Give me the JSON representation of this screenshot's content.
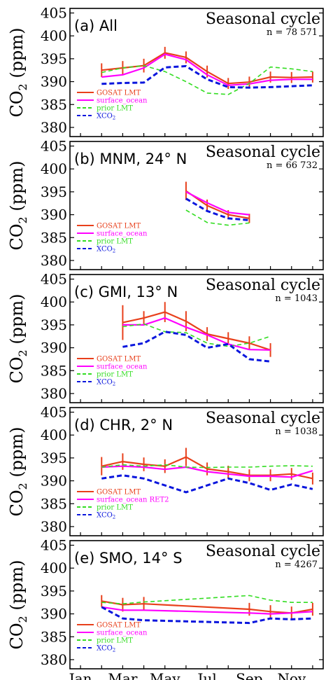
{
  "figure": {
    "y_axis_label": "CO",
    "y_axis_label_sub": "2",
    "y_axis_label_unit": " (ppm)",
    "x_tick_labels": [
      "Jan",
      "Mar",
      "May",
      "Jul",
      "Sep",
      "Nov"
    ]
  },
  "chart_data": [
    {
      "type": "line",
      "title": "(a) All",
      "subtitle": "Seasonal cycle",
      "annotation": "n = 78 571",
      "xlim": [
        0.5,
        12.5
      ],
      "ylim": [
        378,
        406
      ],
      "yticks": [
        380,
        385,
        390,
        395,
        400,
        405
      ],
      "legend_position": "left",
      "series": [
        {
          "name": "GOSAT LMT",
          "color": "#e8401c",
          "style": "solid",
          "x": [
            2,
            3,
            4,
            5,
            6,
            7,
            8,
            9,
            10,
            11,
            12
          ],
          "y": [
            392.5,
            393.0,
            393.5,
            396.3,
            395.3,
            392.2,
            389.6,
            389.9,
            391.0,
            390.9,
            391.0
          ],
          "err": [
            1.5,
            1.5,
            1.5,
            1.3,
            1.3,
            1.3,
            1.2,
            1.2,
            1.2,
            1.2,
            1.2
          ]
        },
        {
          "name": "surface_ocean",
          "color": "#ff00ff",
          "style": "solid",
          "x": [
            2,
            3,
            4,
            5,
            6,
            7,
            8,
            9,
            10,
            11,
            12
          ],
          "y": [
            391.0,
            391.5,
            393.0,
            396.0,
            394.8,
            391.5,
            389.2,
            389.5,
            390.3,
            390.5,
            390.5
          ]
        },
        {
          "name": "prior LMT",
          "color": "#33dd22",
          "style": "dashed",
          "x": [
            2,
            3,
            4,
            5,
            6,
            7,
            8,
            9,
            10,
            11,
            12
          ],
          "y": [
            392.0,
            393.0,
            393.5,
            392.2,
            390.0,
            387.5,
            387.2,
            389.6,
            393.2,
            392.8,
            392.2
          ]
        },
        {
          "name": "XCO",
          "name_sub": "2",
          "color": "#0a16dd",
          "style": "dashed",
          "x": [
            2,
            3,
            4,
            5,
            6,
            7,
            8,
            9,
            10,
            11,
            12
          ],
          "y": [
            389.5,
            389.7,
            389.8,
            393.1,
            393.4,
            390.5,
            388.8,
            388.7,
            388.8,
            389.0,
            389.2
          ]
        }
      ]
    },
    {
      "type": "line",
      "title": "(b) MNM, 24° N",
      "subtitle": "Seasonal cycle",
      "annotation": "n = 66 732",
      "xlim": [
        0.5,
        12.5
      ],
      "ylim": [
        378,
        406
      ],
      "yticks": [
        380,
        385,
        390,
        395,
        400,
        405
      ],
      "legend_position": "left",
      "series": [
        {
          "name": "GOSAT LMT",
          "color": "#e8401c",
          "style": "solid",
          "x": [
            6,
            7,
            8,
            9
          ],
          "y": [
            395.2,
            392.0,
            390.0,
            389.2
          ],
          "err": [
            2.0,
            1.3,
            1.0,
            1.0
          ]
        },
        {
          "name": "surface_ocean",
          "color": "#ff00ff",
          "style": "solid",
          "x": [
            6,
            7,
            8,
            9
          ],
          "y": [
            395.0,
            392.6,
            390.5,
            390.0
          ]
        },
        {
          "name": "prior LMT",
          "color": "#33dd22",
          "style": "dashed",
          "x": [
            6,
            7,
            8,
            9
          ],
          "y": [
            391.0,
            388.3,
            387.7,
            388.2
          ]
        },
        {
          "name": "XCO",
          "name_sub": "2",
          "color": "#0a16dd",
          "style": "dashed",
          "x": [
            6,
            7,
            8,
            9
          ],
          "y": [
            393.5,
            390.8,
            389.2,
            388.8
          ]
        }
      ]
    },
    {
      "type": "line",
      "title": "(c) GMI, 13° N",
      "subtitle": "Seasonal cycle",
      "annotation": "n = 1043",
      "xlim": [
        0.5,
        12.5
      ],
      "ylim": [
        378,
        406
      ],
      "yticks": [
        380,
        385,
        390,
        395,
        400,
        405
      ],
      "legend_position": "left",
      "series": [
        {
          "name": "GOSAT LMT",
          "color": "#e8401c",
          "style": "solid",
          "x": [
            3,
            4,
            5,
            6,
            7,
            8,
            9,
            10
          ],
          "y": [
            395.5,
            396.5,
            397.8,
            395.8,
            393.0,
            392.0,
            391.0,
            389.5
          ],
          "err": [
            3.8,
            1.5,
            2.2,
            2.2,
            1.5,
            1.4,
            1.5,
            1.5
          ]
        },
        {
          "name": "surface_ocean",
          "color": "#ff00ff",
          "style": "solid",
          "x": [
            3,
            4,
            5,
            6,
            7,
            8,
            9,
            10
          ],
          "y": [
            395.0,
            395.0,
            396.5,
            394.5,
            392.8,
            390.8,
            389.6,
            389.5
          ]
        },
        {
          "name": "prior LMT",
          "color": "#33dd22",
          "style": "dashed",
          "x": [
            3,
            4,
            5,
            6,
            7,
            8,
            9,
            10
          ],
          "y": [
            394.6,
            395.2,
            393.5,
            393.3,
            391.0,
            390.3,
            391.0,
            392.5
          ]
        },
        {
          "name": "XCO",
          "name_sub": "2",
          "color": "#0a16dd",
          "style": "dashed",
          "x": [
            3,
            4,
            5,
            6,
            7,
            8,
            9,
            10
          ],
          "y": [
            390.2,
            391.0,
            393.5,
            392.8,
            390.0,
            390.8,
            387.5,
            387.0
          ]
        }
      ]
    },
    {
      "type": "line",
      "title": "(d) CHR, 2° N",
      "subtitle": "Seasonal cycle",
      "annotation": "n = 1038",
      "xlim": [
        0.5,
        12.5
      ],
      "ylim": [
        378,
        406
      ],
      "yticks": [
        380,
        385,
        390,
        395,
        400,
        405
      ],
      "legend_position": "left",
      "series": [
        {
          "name": "GOSAT LMT",
          "color": "#e8401c",
          "style": "solid",
          "x": [
            2,
            3,
            4,
            5,
            6,
            7,
            8,
            9,
            10,
            11,
            12
          ],
          "y": [
            393.2,
            394.2,
            393.6,
            393.2,
            395.2,
            392.6,
            392.0,
            391.2,
            391.2,
            391.5,
            390.5
          ],
          "err": [
            2.0,
            1.8,
            1.5,
            1.5,
            2.0,
            1.4,
            1.3,
            1.3,
            1.3,
            1.3,
            1.3
          ]
        },
        {
          "name": "surface_ocean RET2",
          "color": "#ff00ff",
          "style": "solid",
          "x": [
            2,
            3,
            4,
            5,
            6,
            7,
            8,
            9,
            10,
            11,
            12
          ],
          "y": [
            393.0,
            393.2,
            393.0,
            392.5,
            393.0,
            392.0,
            391.5,
            391.0,
            391.0,
            390.8,
            392.2
          ]
        },
        {
          "name": "prior LMT",
          "color": "#33dd22",
          "style": "dashed",
          "x": [
            2,
            3,
            4,
            5,
            6,
            7,
            8,
            9,
            10,
            11,
            12
          ],
          "y": [
            393.0,
            393.5,
            393.2,
            393.5,
            393.0,
            392.9,
            393.0,
            393.0,
            393.2,
            393.3,
            393.2
          ]
        },
        {
          "name": "XCO",
          "name_sub": "2",
          "color": "#0a16dd",
          "style": "dashed",
          "x": [
            2,
            3,
            4,
            5,
            6,
            7,
            8,
            9,
            10,
            11,
            12
          ],
          "y": [
            390.5,
            391.2,
            390.5,
            389.0,
            387.5,
            389.0,
            390.5,
            389.5,
            388.0,
            389.2,
            388.2
          ]
        }
      ]
    },
    {
      "type": "line",
      "title": "(e) SMO, 14° S",
      "subtitle": "Seasonal cycle",
      "annotation": "n = 4267",
      "xlim": [
        0.5,
        12.5
      ],
      "ylim": [
        378,
        406
      ],
      "yticks": [
        380,
        385,
        390,
        395,
        400,
        405
      ],
      "legend_position": "left",
      "series": [
        {
          "name": "GOSAT LMT",
          "color": "#e8401c",
          "style": "solid",
          "x": [
            2,
            3,
            4,
            9,
            10,
            11,
            12
          ],
          "y": [
            392.8,
            392.0,
            392.2,
            391.0,
            390.5,
            390.2,
            391.0
          ],
          "err": [
            1.3,
            1.5,
            1.5,
            1.4,
            1.4,
            1.4,
            1.4
          ]
        },
        {
          "name": "surface_ocean",
          "color": "#ff00ff",
          "style": "solid",
          "x": [
            2,
            3,
            4,
            9,
            10,
            11,
            12
          ],
          "y": [
            391.5,
            390.8,
            390.8,
            390.2,
            390.0,
            390.2,
            390.5
          ]
        },
        {
          "name": "prior LMT",
          "color": "#33dd22",
          "style": "dashed",
          "x": [
            2,
            3,
            4,
            9,
            10,
            11,
            12
          ],
          "y": [
            392.5,
            392.2,
            392.6,
            394.0,
            393.0,
            392.5,
            392.5
          ]
        },
        {
          "name": "XCO",
          "name_sub": "2",
          "color": "#0a16dd",
          "style": "dashed",
          "x": [
            2,
            3,
            4,
            9,
            10,
            11,
            12
          ],
          "y": [
            391.5,
            389.0,
            388.6,
            388.0,
            389.0,
            388.8,
            389.0
          ]
        }
      ]
    }
  ]
}
